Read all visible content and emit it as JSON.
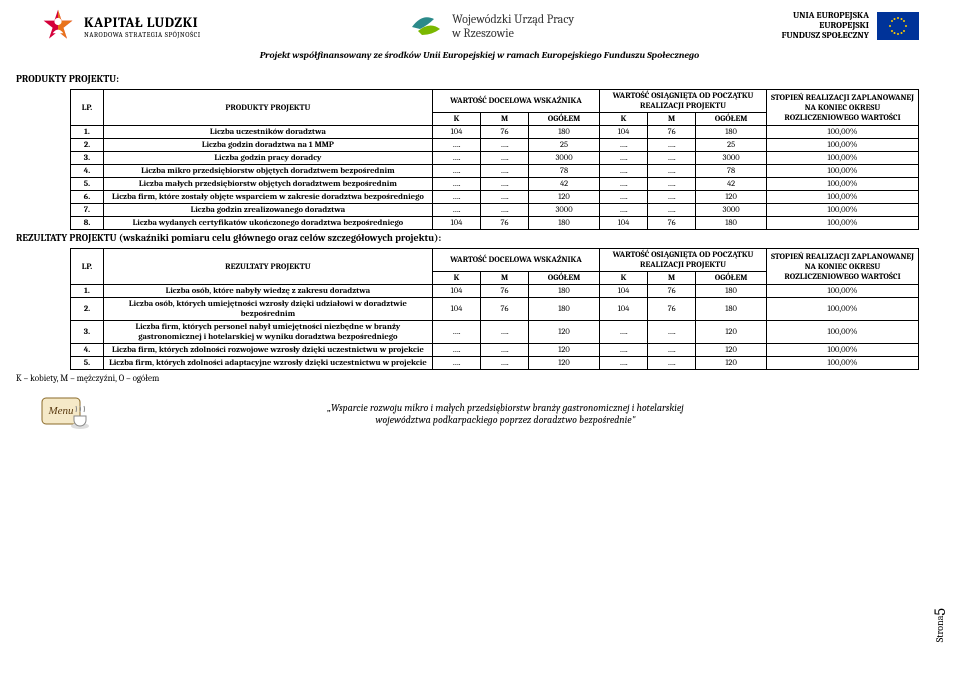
{
  "colors": {
    "background": "#ffffff",
    "text": "#000000",
    "border": "#000000",
    "eu_flag_bg": "#003399",
    "eu_star": "#ffcc00",
    "kl_star_orange": "#e8721b",
    "kl_star_red": "#d4003a",
    "wup_teal": "#2b8a8a",
    "wup_green": "#7ab800"
  },
  "header": {
    "kapital_main": "KAPITAŁ LUDZKI",
    "kapital_sub": "NARODOWA STRATEGIA SPÓJNOŚCI",
    "wup_line1": "Wojewódzki Urząd Pracy",
    "wup_line2": "w Rzeszowie",
    "eu_line1": "UNIA EUROPEJSKA",
    "eu_line2": "EUROPEJSKI",
    "eu_line3": "FUNDUSZ SPOŁECZNY",
    "subtitle": "Projekt współfinansowany ze środków Unii Europejskiej w ramach Europejskiego Funduszu Społecznego"
  },
  "section1": {
    "title": "PRODUKTY PROJEKTU:",
    "col_lp": "LP.",
    "col_name": "PRODUKTY PROJEKTU",
    "col_wd": "WARTOŚĆ DOCELOWA WSKAŹNIKA",
    "col_wo": "WARTOŚĆ OSIĄGNIĘTA OD POCZĄTKU REALIZACJI PROJEKTU",
    "col_st": "STOPIEŃ REALIZACJI ZAPLANOWANEJ NA KONIEC OKRESU ROZLICZENIOWEGO WARTOŚCI",
    "sub_k": "K",
    "sub_m": "M",
    "sub_og": "OGÓŁEM",
    "rows": [
      {
        "lp": "1.",
        "name": "Liczba uczestników doradztwa",
        "k1": "104",
        "m1": "76",
        "o1": "180",
        "k2": "104",
        "m2": "76",
        "o2": "180",
        "st": "100,00%"
      },
      {
        "lp": "2.",
        "name": "Liczba godzin doradztwa na 1 MMP",
        "k1": "….",
        "m1": "….",
        "o1": "25",
        "k2": "….",
        "m2": "….",
        "o2": "25",
        "st": "100,00%"
      },
      {
        "lp": "3.",
        "name": "Liczba godzin pracy doradcy",
        "k1": "….",
        "m1": "….",
        "o1": "3000",
        "k2": "….",
        "m2": "….",
        "o2": "3000",
        "st": "100,00%"
      },
      {
        "lp": "4.",
        "name": "Liczba mikro przedsiębiorstw objętych doradztwem bezpośrednim",
        "k1": "….",
        "m1": "….",
        "o1": "78",
        "k2": "….",
        "m2": "….",
        "o2": "78",
        "st": "100,00%"
      },
      {
        "lp": "5.",
        "name": "Liczba małych przedsiębiorstw objętych doradztwem bezpośrednim",
        "k1": "….",
        "m1": "….",
        "o1": "42",
        "k2": "….",
        "m2": "….",
        "o2": "42",
        "st": "100,00%"
      },
      {
        "lp": "6.",
        "name": "Liczba firm, które zostały objęte wsparciem w zakresie doradztwa bezpośredniego",
        "k1": "….",
        "m1": "….",
        "o1": "120",
        "k2": "….",
        "m2": "….",
        "o2": "120",
        "st": "100,00%"
      },
      {
        "lp": "7.",
        "name": "Liczba godzin zrealizowanego doradztwa",
        "k1": "….",
        "m1": "….",
        "o1": "3000",
        "k2": "….",
        "m2": "….",
        "o2": "3000",
        "st": "100,00%"
      },
      {
        "lp": "8.",
        "name": "Liczba wydanych certyfikatów ukończonego doradztwa bezpośredniego",
        "k1": "104",
        "m1": "76",
        "o1": "180",
        "k2": "104",
        "m2": "76",
        "o2": "180",
        "st": "100,00%"
      }
    ]
  },
  "section2": {
    "title": "REZULTATY PROJEKTU (wskaźniki pomiaru celu głównego oraz celów szczegółowych projektu):",
    "col_lp": "LP.",
    "col_name": "REZULTATY PROJEKTU",
    "col_wd": "WARTOŚĆ DOCELOWA WSKAŹNIKA",
    "col_wo": "WARTOŚĆ OSIĄGNIĘTA OD POCZĄTKU REALIZACJI PROJEKTU",
    "col_st": "STOPIEŃ REALIZACJI ZAPLANOWANEJ NA KONIEC OKRESU ROZLICZENIOWEGO WARTOŚCI",
    "sub_k": "K",
    "sub_m": "M",
    "sub_og": "OGÓŁEM",
    "rows": [
      {
        "lp": "1.",
        "name": "Liczba osób, które nabyły wiedzę z zakresu doradztwa",
        "k1": "104",
        "m1": "76",
        "o1": "180",
        "k2": "104",
        "m2": "76",
        "o2": "180",
        "st": "100,00%"
      },
      {
        "lp": "2.",
        "name": "Liczba osób, których umiejętności wzrosły dzięki udziałowi w doradztwie bezpośrednim",
        "k1": "104",
        "m1": "76",
        "o1": "180",
        "k2": "104",
        "m2": "76",
        "o2": "180",
        "st": "100,00%"
      },
      {
        "lp": "3.",
        "name": "Liczba firm, których personel nabył umiejętności niezbędne w branży gastronomicznej i hotelarskiej w wyniku doradztwa bezpośredniego",
        "k1": "….",
        "m1": "….",
        "o1": "120",
        "k2": "….",
        "m2": "….",
        "o2": "120",
        "st": "100,00%"
      },
      {
        "lp": "4.",
        "name": "Liczba firm, których zdolności rozwojowe wzrosły dzięki uczestnictwu w projekcie",
        "k1": "….",
        "m1": "….",
        "o1": "120",
        "k2": "….",
        "m2": "….",
        "o2": "120",
        "st": "100,00%"
      },
      {
        "lp": "5.",
        "name": "Liczba firm, których zdolności adaptacyjne wzrosły dzięki uczestnictwu w projekcie",
        "k1": "….",
        "m1": "….",
        "o1": "120",
        "k2": "….",
        "m2": "….",
        "o2": "120",
        "st": "100,00%"
      }
    ]
  },
  "legend": "K – kobiety, M – mężczyźni, O – ogółem",
  "footer": {
    "line1": "„Wsparcie rozwoju mikro i małych przedsiębiorstw branży gastronomicznej i hotelarskiej",
    "line2": "województwa podkarpackiego poprzez doradztwo bezpośrednie\""
  },
  "page_label": "Strona",
  "page_number": "5"
}
